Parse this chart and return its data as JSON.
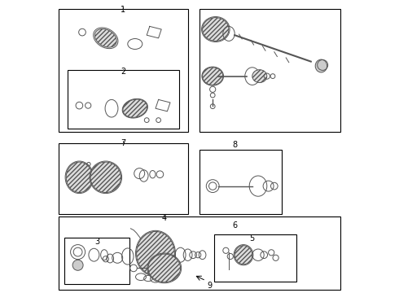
{
  "bg_color": "#ffffff",
  "border_color": "#000000",
  "line_color": "#555555",
  "text_color": "#000000",
  "fig_width": 4.9,
  "fig_height": 3.6,
  "dpi": 100
}
